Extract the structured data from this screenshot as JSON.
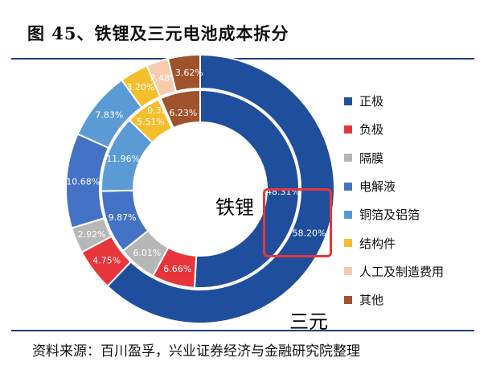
{
  "title": "图 45、铁锂及三元电池成本拆分",
  "source": "资料来源：百川盈孚，兴业证券经济与金融研究院整理",
  "chart_data": {
    "type": "donut",
    "categories": [
      "正极",
      "负极",
      "隔膜",
      "电解液",
      "铜箔及铝箔",
      "结构件",
      "人工及制造费用",
      "其他"
    ],
    "colors": [
      "#1f4e9c",
      "#e8353b",
      "#b7b7b7",
      "#4472c4",
      "#5b9bd5",
      "#f5be2c",
      "#f8cbad",
      "#a0522d"
    ],
    "series": [
      {
        "name": "铁锂",
        "ring": "inner",
        "values": [
          48.31,
          6.66,
          6.01,
          9.87,
          11.96,
          5.51,
          0.33,
          6.23
        ],
        "labels": [
          "48.31%",
          "6.66%",
          "6.01%",
          "9.87%",
          "11.96%",
          "5.51%",
          "0.33%",
          "6.23%"
        ]
      },
      {
        "name": "三元",
        "ring": "outer",
        "values": [
          58.2,
          4.75,
          2.92,
          10.68,
          7.83,
          3.2,
          2.48,
          3.62
        ],
        "labels": [
          "58.20%",
          "4.75%",
          "2.92%",
          "10.68%",
          "7.83%",
          "3.20%",
          "2.48%",
          "3.62%"
        ]
      }
    ],
    "legend_position": "right"
  }
}
